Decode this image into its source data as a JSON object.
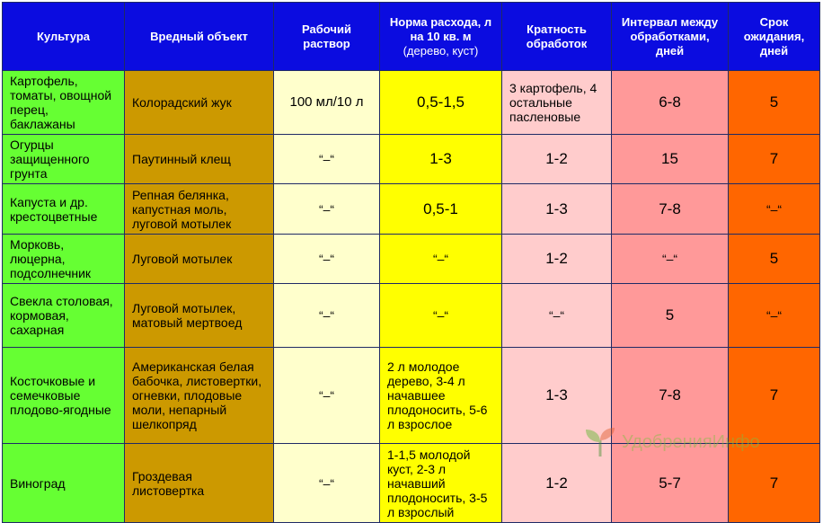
{
  "headers": [
    {
      "label": "Культура",
      "sub": ""
    },
    {
      "label": "Вредный объект",
      "sub": ""
    },
    {
      "label": "Рабочий раствор",
      "sub": ""
    },
    {
      "label": "Норма расхода, л на 10 кв. м",
      "sub": "(дерево, куст)"
    },
    {
      "label": "Кратность обработок",
      "sub": ""
    },
    {
      "label": "Интервал между обработками, дней",
      "sub": ""
    },
    {
      "label": "Срок ожидания, дней",
      "sub": ""
    }
  ],
  "rows": [
    [
      "Картофель, томаты, овощной перец, баклажаны",
      "Колорадский жук",
      "100 мл/10 л",
      "0,5-1,5",
      "3 картофель, 4 остальные пасленовые",
      "6-8",
      "5"
    ],
    [
      "Огурцы защищенного грунта",
      "Паутинный клещ",
      "“–“",
      "1-3",
      "1-2",
      "15",
      "7"
    ],
    [
      "Капуста и др. крестоцветные",
      "Репная белянка, капустная моль, луговой мотылек",
      "“–“",
      "0,5-1",
      "1-3",
      "7-8",
      "“–“"
    ],
    [
      "Морковь, люцерна, подсолнечник",
      "Луговой мотылек",
      "“–“",
      "“–“",
      "1-2",
      "“–“",
      "5"
    ],
    [
      "Свекла столовая, кормовая, сахарная",
      "Луговой мотылек, матовый мертвоед",
      "“–“",
      "“–“",
      "“–“",
      "5",
      "“–“"
    ],
    [
      "Косточковые и семечковые плодово-ягодные",
      "Американская белая бабочка, листовертки, огневки, плодовые моли, непарный шелкопряд",
      "“–“",
      "2 л молодое дерево, 3-4 л начавшее плодоносить, 5-6 л взрослое",
      "1-3",
      "7-8",
      "7"
    ],
    [
      "Виноград",
      "Гроздевая листовертка",
      "“–“",
      "1-1,5 молодой куст, 2-3 л начавший плодоносить, 3-5 л взрослый",
      "1-2",
      "5-7",
      "7"
    ]
  ],
  "watermark": {
    "text": "УдобренияИнфо",
    "icon": "sprout-icon"
  },
  "colors": {
    "header": "#0b0ce0",
    "col_culture": "#66ff33",
    "col_pest": "#cc9900",
    "col_solution": "#ffffcc",
    "col_rate": "#ffff00",
    "col_count": "#ffcccc",
    "col_interval": "#ff9999",
    "col_wait": "#ff6600"
  }
}
